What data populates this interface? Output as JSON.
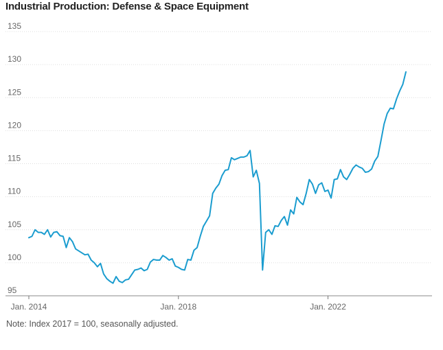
{
  "chart_data": {
    "type": "line",
    "title": "Industrial Production: Defense & Space Equipment",
    "note": "Note: Index 2017 = 100, seasonally adjusted.",
    "xlabel": "",
    "ylabel": "",
    "ylim": [
      95,
      135
    ],
    "yticks": [
      95,
      100,
      105,
      110,
      115,
      120,
      125,
      130,
      135
    ],
    "xlim": [
      2014.0,
      2024.8
    ],
    "xticks": [
      {
        "value": 2014.0,
        "label": "Jan. 2014"
      },
      {
        "value": 2018.0,
        "label": "Jan. 2018"
      },
      {
        "value": 2022.0,
        "label": "Jan. 2022"
      }
    ],
    "color": "#1a9ccf",
    "series": [
      {
        "name": "Defense & Space Equipment",
        "start": 2014.0,
        "step_months": 1,
        "values": [
          103.8,
          104.0,
          105.0,
          104.6,
          104.6,
          104.3,
          105.0,
          103.9,
          104.6,
          104.7,
          104.1,
          104.0,
          102.3,
          103.8,
          103.2,
          102.1,
          101.8,
          101.5,
          101.2,
          101.3,
          100.4,
          100.0,
          99.4,
          99.9,
          98.3,
          97.6,
          97.2,
          96.9,
          97.9,
          97.2,
          97.0,
          97.4,
          97.5,
          98.2,
          98.9,
          99.0,
          99.2,
          98.8,
          99.0,
          100.1,
          100.5,
          100.4,
          100.4,
          101.1,
          100.8,
          100.4,
          100.6,
          99.5,
          99.3,
          99.0,
          98.9,
          100.5,
          100.4,
          101.9,
          102.3,
          104.0,
          105.5,
          106.3,
          107.1,
          110.5,
          111.3,
          111.9,
          113.2,
          114.0,
          114.1,
          115.9,
          115.6,
          115.8,
          116.0,
          116.0,
          116.2,
          117.0,
          113.0,
          114.0,
          112.0,
          98.9,
          104.6,
          105.0,
          104.3,
          105.6,
          105.5,
          106.4,
          107.0,
          105.7,
          108.0,
          107.4,
          109.9,
          109.2,
          108.8,
          110.5,
          112.6,
          111.9,
          110.5,
          111.8,
          112.1,
          110.8,
          111.0,
          109.8,
          112.6,
          112.7,
          114.1,
          113.0,
          112.6,
          113.4,
          114.3,
          114.8,
          114.5,
          114.3,
          113.7,
          113.8,
          114.2,
          115.4,
          116.1,
          118.5,
          121.0,
          122.6,
          123.4,
          123.3,
          124.8,
          126.0,
          127.0,
          128.9
        ]
      }
    ]
  }
}
